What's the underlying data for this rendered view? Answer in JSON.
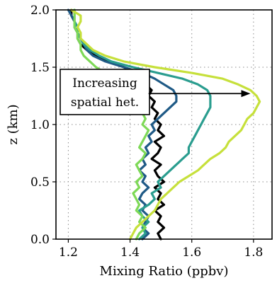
{
  "chart_data": {
    "type": "line",
    "xlabel": "Mixing Ratio (ppbv)",
    "ylabel": "z (km)",
    "xlim": [
      1.16,
      1.86
    ],
    "ylim": [
      0.0,
      2.0
    ],
    "xticks": [
      "1.2",
      "1.4",
      "1.6",
      "1.8"
    ],
    "yticks": [
      "0.0",
      "0.5",
      "1.0",
      "1.5",
      "2.0"
    ],
    "xtick_values": [
      1.2,
      1.4,
      1.6,
      1.8
    ],
    "ytick_values": [
      0.0,
      0.5,
      1.0,
      1.5,
      2.0
    ],
    "grid": true,
    "annotation": {
      "lines": [
        "Increasing",
        "spatial het."
      ],
      "arrow_y": 1.27,
      "arrow_x_from": 1.46,
      "arrow_x_to": 1.79
    },
    "series": [
      {
        "color": "#000000",
        "points": [
          [
            1.5,
            0.0
          ],
          [
            1.49,
            0.05
          ],
          [
            1.51,
            0.1
          ],
          [
            1.49,
            0.15
          ],
          [
            1.5,
            0.2
          ],
          [
            1.48,
            0.25
          ],
          [
            1.51,
            0.3
          ],
          [
            1.49,
            0.35
          ],
          [
            1.5,
            0.4
          ],
          [
            1.48,
            0.45
          ],
          [
            1.51,
            0.5
          ],
          [
            1.49,
            0.55
          ],
          [
            1.48,
            0.6
          ],
          [
            1.5,
            0.65
          ],
          [
            1.47,
            0.7
          ],
          [
            1.49,
            0.75
          ],
          [
            1.5,
            0.8
          ],
          [
            1.48,
            0.85
          ],
          [
            1.51,
            0.9
          ],
          [
            1.49,
            0.95
          ],
          [
            1.5,
            1.0
          ],
          [
            1.48,
            1.05
          ],
          [
            1.49,
            1.1
          ],
          [
            1.47,
            1.15
          ],
          [
            1.48,
            1.2
          ],
          [
            1.46,
            1.25
          ],
          [
            1.47,
            1.3
          ],
          [
            1.45,
            1.35
          ],
          [
            1.44,
            1.4
          ],
          [
            1.42,
            1.45
          ],
          [
            1.38,
            1.5
          ],
          [
            1.33,
            1.55
          ],
          [
            1.29,
            1.6
          ],
          [
            1.26,
            1.65
          ],
          [
            1.24,
            1.7
          ],
          [
            1.23,
            1.75
          ],
          [
            1.23,
            1.8
          ],
          [
            1.22,
            1.85
          ],
          [
            1.22,
            1.9
          ],
          [
            1.21,
            1.95
          ],
          [
            1.21,
            2.0
          ]
        ]
      },
      {
        "color": "#1f5a86",
        "points": [
          [
            1.44,
            0.0
          ],
          [
            1.46,
            0.05
          ],
          [
            1.44,
            0.1
          ],
          [
            1.45,
            0.15
          ],
          [
            1.46,
            0.2
          ],
          [
            1.44,
            0.25
          ],
          [
            1.45,
            0.3
          ],
          [
            1.43,
            0.35
          ],
          [
            1.44,
            0.4
          ],
          [
            1.46,
            0.45
          ],
          [
            1.44,
            0.5
          ],
          [
            1.45,
            0.55
          ],
          [
            1.43,
            0.6
          ],
          [
            1.45,
            0.65
          ],
          [
            1.44,
            0.7
          ],
          [
            1.46,
            0.75
          ],
          [
            1.45,
            0.8
          ],
          [
            1.47,
            0.85
          ],
          [
            1.46,
            0.9
          ],
          [
            1.48,
            0.95
          ],
          [
            1.47,
            1.0
          ],
          [
            1.49,
            1.05
          ],
          [
            1.51,
            1.1
          ],
          [
            1.53,
            1.15
          ],
          [
            1.55,
            1.2
          ],
          [
            1.55,
            1.25
          ],
          [
            1.54,
            1.3
          ],
          [
            1.51,
            1.35
          ],
          [
            1.48,
            1.4
          ],
          [
            1.44,
            1.45
          ],
          [
            1.38,
            1.5
          ],
          [
            1.32,
            1.55
          ],
          [
            1.28,
            1.6
          ],
          [
            1.26,
            1.65
          ],
          [
            1.25,
            1.7
          ],
          [
            1.24,
            1.75
          ],
          [
            1.23,
            1.8
          ],
          [
            1.22,
            1.85
          ],
          [
            1.22,
            1.9
          ],
          [
            1.21,
            1.95
          ],
          [
            1.2,
            2.0
          ]
        ]
      },
      {
        "color": "#2a9d8f",
        "points": [
          [
            1.43,
            0.0
          ],
          [
            1.45,
            0.05
          ],
          [
            1.44,
            0.1
          ],
          [
            1.46,
            0.15
          ],
          [
            1.44,
            0.2
          ],
          [
            1.43,
            0.25
          ],
          [
            1.46,
            0.3
          ],
          [
            1.48,
            0.35
          ],
          [
            1.47,
            0.4
          ],
          [
            1.5,
            0.45
          ],
          [
            1.49,
            0.5
          ],
          [
            1.51,
            0.55
          ],
          [
            1.53,
            0.6
          ],
          [
            1.55,
            0.65
          ],
          [
            1.57,
            0.7
          ],
          [
            1.59,
            0.75
          ],
          [
            1.59,
            0.8
          ],
          [
            1.6,
            0.85
          ],
          [
            1.61,
            0.9
          ],
          [
            1.62,
            0.95
          ],
          [
            1.63,
            1.0
          ],
          [
            1.64,
            1.05
          ],
          [
            1.65,
            1.1
          ],
          [
            1.66,
            1.15
          ],
          [
            1.66,
            1.2
          ],
          [
            1.66,
            1.25
          ],
          [
            1.65,
            1.3
          ],
          [
            1.62,
            1.35
          ],
          [
            1.57,
            1.4
          ],
          [
            1.49,
            1.45
          ],
          [
            1.41,
            1.5
          ],
          [
            1.34,
            1.55
          ],
          [
            1.3,
            1.6
          ],
          [
            1.27,
            1.65
          ],
          [
            1.25,
            1.7
          ],
          [
            1.24,
            1.75
          ],
          [
            1.23,
            1.8
          ],
          [
            1.23,
            1.85
          ],
          [
            1.22,
            1.9
          ],
          [
            1.22,
            1.95
          ],
          [
            1.22,
            2.0
          ]
        ]
      },
      {
        "color": "#7ed957",
        "points": [
          [
            1.42,
            0.0
          ],
          [
            1.43,
            0.05
          ],
          [
            1.45,
            0.1
          ],
          [
            1.43,
            0.15
          ],
          [
            1.44,
            0.2
          ],
          [
            1.42,
            0.25
          ],
          [
            1.43,
            0.3
          ],
          [
            1.42,
            0.35
          ],
          [
            1.41,
            0.4
          ],
          [
            1.43,
            0.45
          ],
          [
            1.42,
            0.5
          ],
          [
            1.44,
            0.55
          ],
          [
            1.43,
            0.6
          ],
          [
            1.42,
            0.65
          ],
          [
            1.44,
            0.7
          ],
          [
            1.45,
            0.75
          ],
          [
            1.43,
            0.8
          ],
          [
            1.44,
            0.85
          ],
          [
            1.45,
            0.9
          ],
          [
            1.46,
            0.95
          ],
          [
            1.44,
            1.0
          ],
          [
            1.45,
            1.05
          ],
          [
            1.44,
            1.1
          ],
          [
            1.43,
            1.15
          ],
          [
            1.42,
            1.2
          ],
          [
            1.41,
            1.25
          ],
          [
            1.39,
            1.3
          ],
          [
            1.37,
            1.35
          ],
          [
            1.35,
            1.4
          ],
          [
            1.32,
            1.45
          ],
          [
            1.29,
            1.5
          ],
          [
            1.27,
            1.55
          ],
          [
            1.25,
            1.6
          ],
          [
            1.24,
            1.65
          ],
          [
            1.24,
            1.7
          ],
          [
            1.23,
            1.75
          ],
          [
            1.23,
            1.8
          ],
          [
            1.22,
            1.85
          ],
          [
            1.22,
            1.9
          ],
          [
            1.22,
            1.95
          ],
          [
            1.22,
            2.0
          ]
        ]
      },
      {
        "color": "#c6e03b",
        "points": [
          [
            1.4,
            0.0
          ],
          [
            1.41,
            0.05
          ],
          [
            1.42,
            0.1
          ],
          [
            1.44,
            0.15
          ],
          [
            1.46,
            0.2
          ],
          [
            1.48,
            0.25
          ],
          [
            1.49,
            0.3
          ],
          [
            1.5,
            0.35
          ],
          [
            1.52,
            0.4
          ],
          [
            1.54,
            0.45
          ],
          [
            1.56,
            0.5
          ],
          [
            1.59,
            0.55
          ],
          [
            1.62,
            0.6
          ],
          [
            1.64,
            0.65
          ],
          [
            1.66,
            0.7
          ],
          [
            1.69,
            0.75
          ],
          [
            1.71,
            0.8
          ],
          [
            1.72,
            0.85
          ],
          [
            1.74,
            0.9
          ],
          [
            1.76,
            0.95
          ],
          [
            1.77,
            1.0
          ],
          [
            1.78,
            1.05
          ],
          [
            1.8,
            1.1
          ],
          [
            1.81,
            1.15
          ],
          [
            1.82,
            1.2
          ],
          [
            1.81,
            1.25
          ],
          [
            1.79,
            1.3
          ],
          [
            1.75,
            1.35
          ],
          [
            1.7,
            1.4
          ],
          [
            1.6,
            1.45
          ],
          [
            1.48,
            1.5
          ],
          [
            1.38,
            1.55
          ],
          [
            1.32,
            1.6
          ],
          [
            1.28,
            1.65
          ],
          [
            1.26,
            1.7
          ],
          [
            1.24,
            1.75
          ],
          [
            1.24,
            1.8
          ],
          [
            1.23,
            1.85
          ],
          [
            1.24,
            1.9
          ],
          [
            1.24,
            1.95
          ],
          [
            1.21,
            2.0
          ]
        ]
      }
    ]
  }
}
